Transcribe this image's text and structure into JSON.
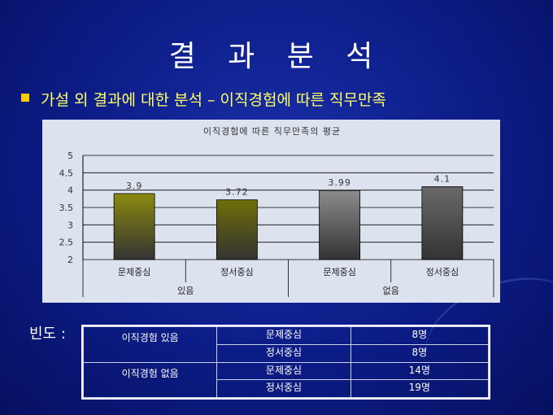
{
  "slide": {
    "title": "결 과 분 석",
    "bullet": "가설 외 결과에 대한 분석 – 이직경험에 따른 직무만족"
  },
  "chart_data": {
    "type": "bar",
    "title": "이직경험에 따른 직무만족의 평균",
    "groups": [
      {
        "label": "있음",
        "categories": [
          "문제중심",
          "정서중심"
        ]
      },
      {
        "label": "없음",
        "categories": [
          "문제중심",
          "정서중심"
        ]
      }
    ],
    "categories": [
      "문제중심",
      "정서중심",
      "문제중심",
      "정서중심"
    ],
    "values": [
      3.9,
      3.72,
      3.99,
      4.1
    ],
    "value_labels": [
      "3.9",
      "3.72",
      "3.99",
      "4.1"
    ],
    "ylim": [
      2,
      5
    ],
    "yticks": [
      "5",
      "4.5",
      "4",
      "3.5",
      "3",
      "2.5",
      "2"
    ],
    "grid": true,
    "bar_colors": [
      "#8a8a10",
      "#6e6e08",
      "#8c8c8c",
      "#6a6a6a"
    ]
  },
  "frequency": {
    "label": "빈도 :",
    "rows": [
      {
        "group": "이직경험 있음",
        "items": [
          {
            "type": "문제중심",
            "count": "8명"
          },
          {
            "type": "정서중심",
            "count": "8명"
          }
        ]
      },
      {
        "group": "이직경험 없음",
        "items": [
          {
            "type": "문제중심",
            "count": "14명"
          },
          {
            "type": "정서중심",
            "count": "19명"
          }
        ]
      }
    ]
  }
}
